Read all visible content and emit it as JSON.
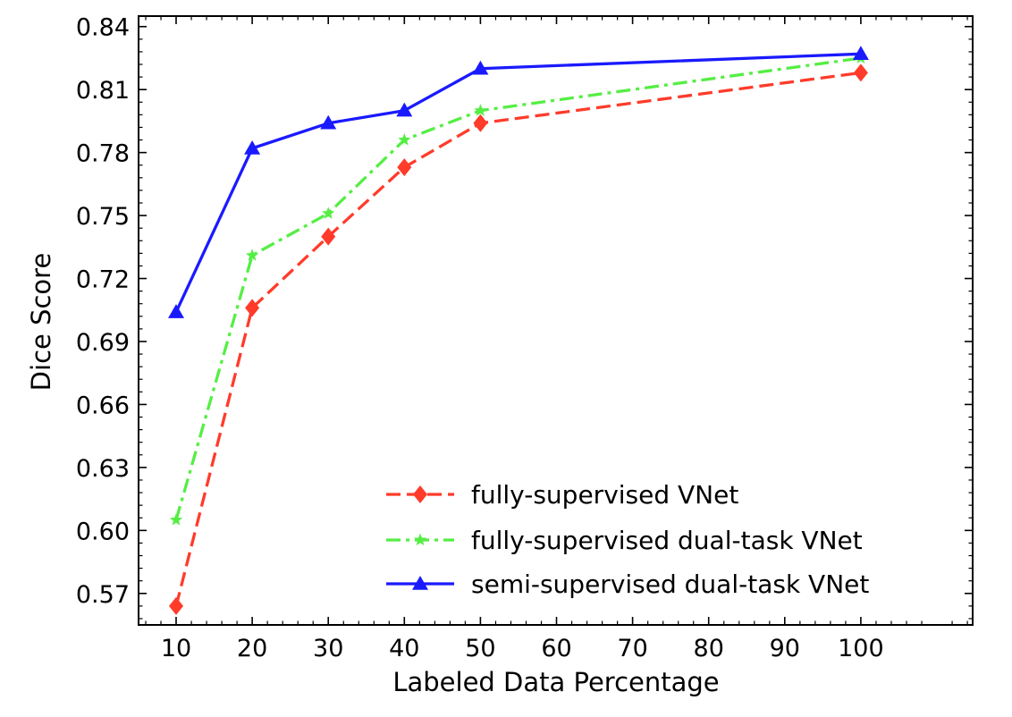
{
  "chart_data": {
    "type": "line",
    "title": "",
    "xlabel": "Labeled Data Percentage",
    "ylabel": "Dice Score",
    "categories": [
      "10",
      "20",
      "30",
      "40",
      "50",
      "60",
      "70",
      "80",
      "90",
      "100"
    ],
    "xlim": [
      10,
      100
    ],
    "ylim": [
      0.555,
      0.845
    ],
    "y_ticks": [
      "0.57",
      "0.60",
      "0.63",
      "0.66",
      "0.69",
      "0.72",
      "0.75",
      "0.78",
      "0.81",
      "0.84"
    ],
    "grid": false,
    "legend_position": "lower-right",
    "series": [
      {
        "name": "fully-supervised VNet",
        "color": "#ff3b2a",
        "line_style": "dashed",
        "marker": "diamond",
        "x": [
          10,
          20,
          30,
          40,
          50,
          100
        ],
        "values": [
          0.564,
          0.706,
          0.74,
          0.773,
          0.794,
          0.818
        ]
      },
      {
        "name": "fully-supervised dual-task VNet",
        "color": "#55ee44",
        "line_style": "dashdot",
        "marker": "star",
        "x": [
          10,
          20,
          30,
          40,
          50,
          100
        ],
        "values": [
          0.605,
          0.731,
          0.751,
          0.786,
          0.8,
          0.825
        ]
      },
      {
        "name": "semi-supervised dual-task VNet",
        "color": "#1a1aff",
        "line_style": "solid",
        "marker": "triangle",
        "x": [
          10,
          20,
          30,
          40,
          50,
          100
        ],
        "values": [
          0.704,
          0.782,
          0.794,
          0.8,
          0.82,
          0.827
        ]
      }
    ]
  }
}
